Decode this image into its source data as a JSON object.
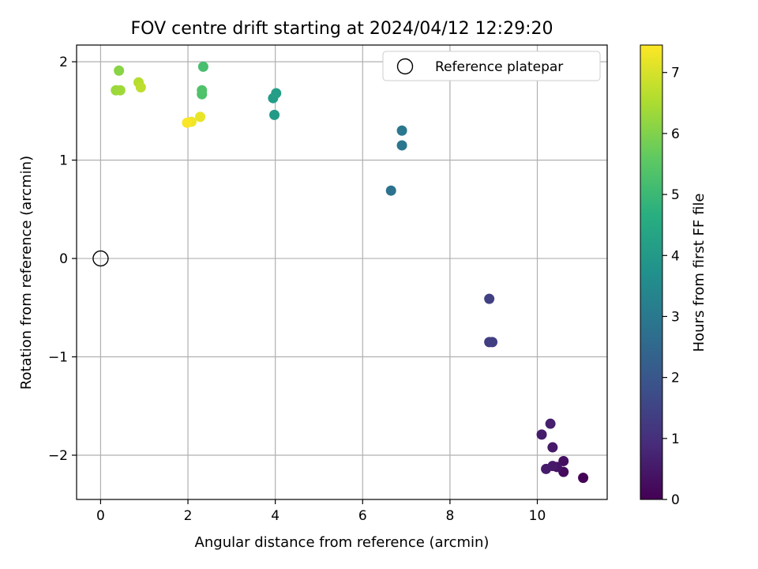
{
  "chart_data": {
    "type": "scatter",
    "title": "FOV centre drift starting at 2024/04/12 12:29:20",
    "xlabel": "Angular distance from reference (arcmin)",
    "ylabel": "Rotation from reference (arcmin)",
    "xlim": [
      -0.55,
      11.6
    ],
    "ylim": [
      -2.45,
      2.17
    ],
    "xticks": [
      0,
      2,
      4,
      6,
      8,
      10
    ],
    "xtick_labels": [
      "0",
      "2",
      "4",
      "6",
      "8",
      "10"
    ],
    "yticks": [
      -2,
      -1,
      0,
      1,
      2
    ],
    "ytick_labels": [
      "−2",
      "−1",
      "0",
      "1",
      "2"
    ],
    "grid": true,
    "legend": {
      "position": "top-right",
      "entries": [
        "Reference platepar"
      ]
    },
    "reference_point": {
      "x": 0,
      "y": 0
    },
    "colorbar": {
      "label": "Hours from first FF file",
      "range": [
        0,
        7.45
      ],
      "ticks": [
        0,
        1,
        2,
        3,
        4,
        5,
        6,
        7
      ],
      "tick_labels": [
        "0",
        "1",
        "2",
        "3",
        "4",
        "5",
        "6",
        "7"
      ],
      "colormap": "viridis"
    },
    "points": [
      {
        "x": 11.05,
        "y": -2.23,
        "c": 0.05
      },
      {
        "x": 10.6,
        "y": -2.17,
        "c": 0.2
      },
      {
        "x": 10.6,
        "y": -2.06,
        "c": 0.3
      },
      {
        "x": 10.45,
        "y": -2.12,
        "c": 0.4
      },
      {
        "x": 10.35,
        "y": -2.11,
        "c": 0.5
      },
      {
        "x": 10.2,
        "y": -2.14,
        "c": 0.55
      },
      {
        "x": 10.35,
        "y": -1.92,
        "c": 0.5
      },
      {
        "x": 10.1,
        "y": -1.79,
        "c": 0.6
      },
      {
        "x": 10.3,
        "y": -1.68,
        "c": 0.65
      },
      {
        "x": 8.9,
        "y": -0.85,
        "c": 1.3
      },
      {
        "x": 8.97,
        "y": -0.85,
        "c": 1.35
      },
      {
        "x": 8.9,
        "y": -0.41,
        "c": 1.4
      },
      {
        "x": 6.65,
        "y": 0.69,
        "c": 2.8
      },
      {
        "x": 6.9,
        "y": 1.15,
        "c": 2.9
      },
      {
        "x": 6.9,
        "y": 1.3,
        "c": 2.95
      },
      {
        "x": 3.98,
        "y": 1.46,
        "c": 4.0
      },
      {
        "x": 3.95,
        "y": 1.63,
        "c": 4.1
      },
      {
        "x": 4.02,
        "y": 1.68,
        "c": 4.15
      },
      {
        "x": 2.35,
        "y": 1.95,
        "c": 5.2
      },
      {
        "x": 2.32,
        "y": 1.67,
        "c": 5.3
      },
      {
        "x": 2.32,
        "y": 1.71,
        "c": 5.35
      },
      {
        "x": 0.42,
        "y": 1.91,
        "c": 6.1
      },
      {
        "x": 0.35,
        "y": 1.71,
        "c": 6.3
      },
      {
        "x": 0.45,
        "y": 1.71,
        "c": 6.35
      },
      {
        "x": 0.87,
        "y": 1.79,
        "c": 6.6
      },
      {
        "x": 0.92,
        "y": 1.74,
        "c": 6.7
      },
      {
        "x": 2.28,
        "y": 1.44,
        "c": 7.2
      },
      {
        "x": 2.08,
        "y": 1.39,
        "c": 7.3
      },
      {
        "x": 1.98,
        "y": 1.38,
        "c": 7.4
      }
    ]
  }
}
